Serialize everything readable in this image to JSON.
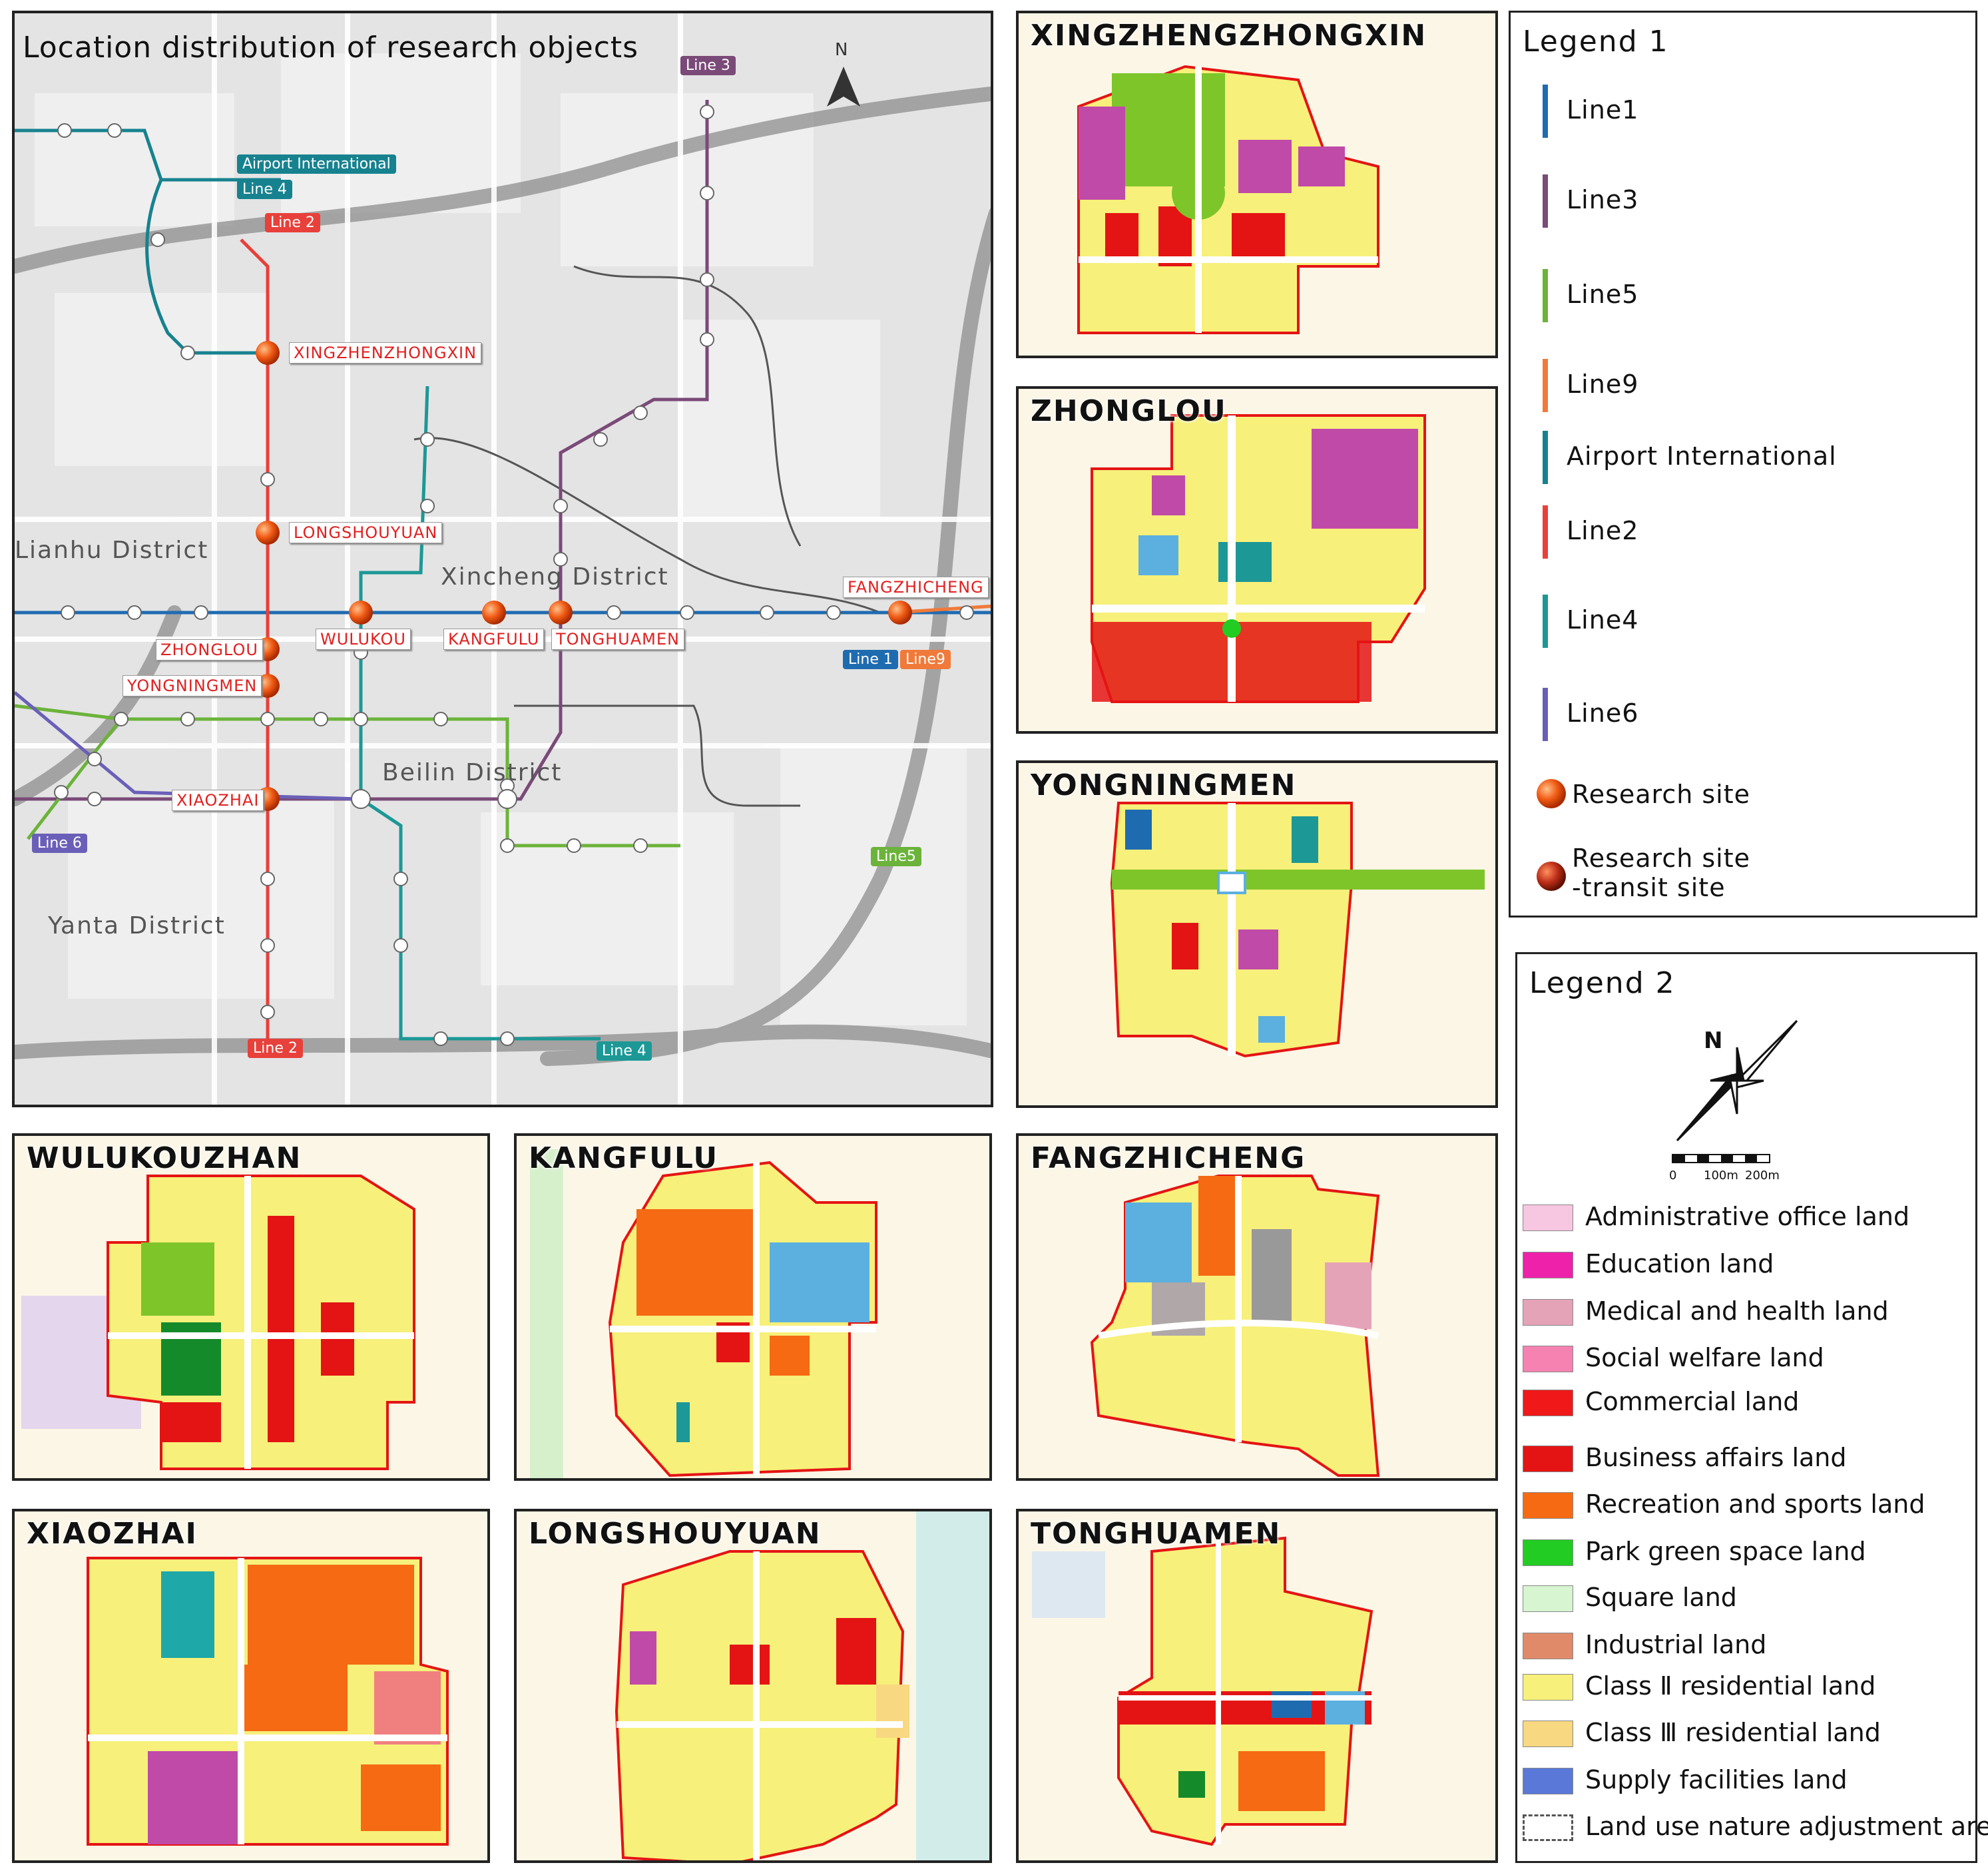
{
  "main_map": {
    "title": "Location distribution of research objects",
    "north": "N",
    "districts": [
      {
        "name": "Lianhu District"
      },
      {
        "name": "Xincheng District"
      },
      {
        "name": "Beilin District"
      },
      {
        "name": "Yanta District"
      }
    ],
    "line_tags": {
      "line3_top": "Line 3",
      "airport": "Airport International",
      "line4_top": "Line 4",
      "line2_top": "Line 2",
      "line1": "Line 1",
      "line9": "Line9",
      "line6": "Line 6",
      "line5": "Line5",
      "line2_bottom": "Line 2",
      "line4_bottom": "Line 4"
    },
    "sites": [
      "XINGZHENZHONGXIN",
      "LONGSHOUYUAN",
      "WULUKOU",
      "KANGFULU",
      "TONGHUAMEN",
      "FANGZHICHENG",
      "ZHONGLOU",
      "YONGNINGMEN",
      "XIAOZHAI"
    ]
  },
  "detail_maps": [
    {
      "title": "XINGZHENGZHONGXIN"
    },
    {
      "title": "ZHONGLOU"
    },
    {
      "title": "YONGNINGMEN"
    },
    {
      "title": "WULUKOUZHAN"
    },
    {
      "title": "KANGFULU"
    },
    {
      "title": "FANGZHICHENG"
    },
    {
      "title": "XIAOZHAI"
    },
    {
      "title": "LONGSHOUYUAN"
    },
    {
      "title": "TONGHUAMEN"
    }
  ],
  "legend1": {
    "title": "Legend 1",
    "lines": [
      {
        "label": "Line1",
        "color": "#1f6bb0"
      },
      {
        "label": "Line3",
        "color": "#7a4a78"
      },
      {
        "label": "Line5",
        "color": "#6bb33a"
      },
      {
        "label": "Line9",
        "color": "#f07a3a"
      },
      {
        "label": "Airport International",
        "color": "#17828f"
      },
      {
        "label": "Line2",
        "color": "#e8403a"
      },
      {
        "label": "Line4",
        "color": "#1c9896"
      },
      {
        "label": "Line6",
        "color": "#6a5fb8"
      }
    ],
    "site": "Research site",
    "transit_site_1": "Research site",
    "transit_site_2": "-transit site"
  },
  "legend2": {
    "title": "Legend 2",
    "north": "N",
    "scale": [
      "0",
      "100m",
      "200m"
    ],
    "items": [
      {
        "label": "Administrative office land",
        "color": "#f7c6e0"
      },
      {
        "label": "Education land",
        "color": "#ee22aa"
      },
      {
        "label": "Medical and health land",
        "color": "#e5a3b8"
      },
      {
        "label": "Social welfare land",
        "color": "#f582b0"
      },
      {
        "label": "Commercial land",
        "color": "#f01818"
      },
      {
        "label": "Business affairs land",
        "color": "#e41414"
      },
      {
        "label": "Recreation and sports land",
        "color": "#f56a12"
      },
      {
        "label": "Park green space land",
        "color": "#22cc22"
      },
      {
        "label": "Square land",
        "color": "#d6f5d0"
      },
      {
        "label": "Industrial land",
        "color": "#e08a6a"
      },
      {
        "label": "Class Ⅱ residential land",
        "color": "#f7f07a"
      },
      {
        "label": "Class Ⅲ residential land",
        "color": "#f8d880"
      },
      {
        "label": "Supply facilities land",
        "color": "#5a78d8"
      },
      {
        "label": "Land use nature adjustment area",
        "color": "#ffffff"
      }
    ]
  }
}
